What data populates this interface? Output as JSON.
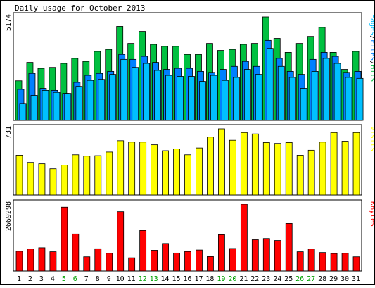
{
  "title": "Daily usage for October 2013",
  "colors": {
    "hits": "#00c040",
    "files": "#0080ff",
    "pages": "#00c0ff",
    "visits": "#ffff00",
    "kbytes": "#ff0000",
    "weekday_label": "#000000",
    "weekend_label": "#00a000",
    "panel_bg": "#ffffff",
    "outline": "#000000"
  },
  "chart_data": [
    {
      "type": "bar",
      "panel": "hits_files_pages",
      "ylabel_left": "5174",
      "side_label_parts": [
        {
          "text": "Pages",
          "color": "#00c0ff"
        },
        {
          "text": "/",
          "color": "#000000"
        },
        {
          "text": "Files",
          "color": "#0080ff"
        },
        {
          "text": "/",
          "color": "#000000"
        },
        {
          "text": "Hits",
          "color": "#00c040"
        }
      ],
      "ylim": [
        0,
        5174
      ],
      "categories": [
        "1",
        "2",
        "3",
        "4",
        "5",
        "6",
        "7",
        "8",
        "9",
        "10",
        "11",
        "12",
        "13",
        "14",
        "15",
        "16",
        "17",
        "18",
        "19",
        "20",
        "21",
        "22",
        "23",
        "24",
        "25",
        "26",
        "27",
        "28",
        "29",
        "30",
        "31"
      ],
      "series": [
        {
          "name": "Hits",
          "values": [
            1980,
            2900,
            2600,
            2650,
            2850,
            3100,
            2950,
            3450,
            3550,
            4700,
            3850,
            4450,
            3800,
            3700,
            3700,
            3300,
            3300,
            3850,
            3500,
            3550,
            3800,
            3850,
            5174,
            4100,
            3400,
            3850,
            4200,
            4650,
            3400,
            2550,
            3450
          ]
        },
        {
          "name": "Files",
          "values": [
            1550,
            2350,
            1600,
            1500,
            1350,
            1900,
            2250,
            2350,
            2450,
            3300,
            3050,
            3200,
            2900,
            2550,
            2600,
            2600,
            2450,
            2400,
            2550,
            2700,
            2950,
            2700,
            4000,
            3100,
            2450,
            2300,
            3050,
            3400,
            3200,
            2400,
            2450
          ]
        },
        {
          "name": "Pages",
          "values": [
            850,
            1250,
            1500,
            1400,
            1350,
            1700,
            2000,
            2050,
            2300,
            3050,
            2650,
            2850,
            2500,
            2250,
            2200,
            2200,
            1950,
            2250,
            2000,
            2150,
            2550,
            2300,
            3600,
            2700,
            2150,
            1600,
            2450,
            3100,
            2850,
            2150,
            2100
          ]
        }
      ]
    },
    {
      "type": "bar",
      "panel": "visits",
      "ylabel_left": "731",
      "side_label_parts": [
        {
          "text": "Visits",
          "color": "#ffff00"
        }
      ],
      "ylim": [
        0,
        731
      ],
      "categories": [
        "1",
        "2",
        "3",
        "4",
        "5",
        "6",
        "7",
        "8",
        "9",
        "10",
        "11",
        "12",
        "13",
        "14",
        "15",
        "16",
        "17",
        "18",
        "19",
        "20",
        "21",
        "22",
        "23",
        "24",
        "25",
        "26",
        "27",
        "28",
        "29",
        "30",
        "31"
      ],
      "series": [
        {
          "name": "Visits",
          "values": [
            440,
            360,
            345,
            290,
            330,
            445,
            430,
            435,
            475,
            600,
            585,
            585,
            555,
            490,
            510,
            445,
            520,
            640,
            731,
            605,
            690,
            675,
            580,
            570,
            580,
            440,
            495,
            585,
            690,
            595,
            690
          ]
        }
      ]
    },
    {
      "type": "bar",
      "panel": "kbytes",
      "ylabel_left": "2669298",
      "side_label_parts": [
        {
          "text": "KBytes",
          "color": "#ff0000"
        }
      ],
      "ylim": [
        0,
        2669298
      ],
      "categories": [
        "1",
        "2",
        "3",
        "4",
        "5",
        "6",
        "7",
        "8",
        "9",
        "10",
        "11",
        "12",
        "13",
        "14",
        "15",
        "16",
        "17",
        "18",
        "19",
        "20",
        "21",
        "22",
        "23",
        "24",
        "25",
        "26",
        "27",
        "28",
        "29",
        "30",
        "31"
      ],
      "series": [
        {
          "name": "KBytes",
          "values": [
            790000,
            880000,
            930000,
            770000,
            2550000,
            1480000,
            570000,
            890000,
            710000,
            2370000,
            530000,
            1620000,
            830000,
            1100000,
            720000,
            780000,
            840000,
            580000,
            1450000,
            900000,
            2669298,
            1250000,
            1300000,
            1220000,
            1900000,
            770000,
            880000,
            740000,
            700000,
            710000,
            570000
          ]
        }
      ]
    }
  ],
  "x_axis": {
    "weekend_days": [
      "5",
      "6",
      "12",
      "13",
      "19",
      "20",
      "26",
      "27"
    ]
  }
}
